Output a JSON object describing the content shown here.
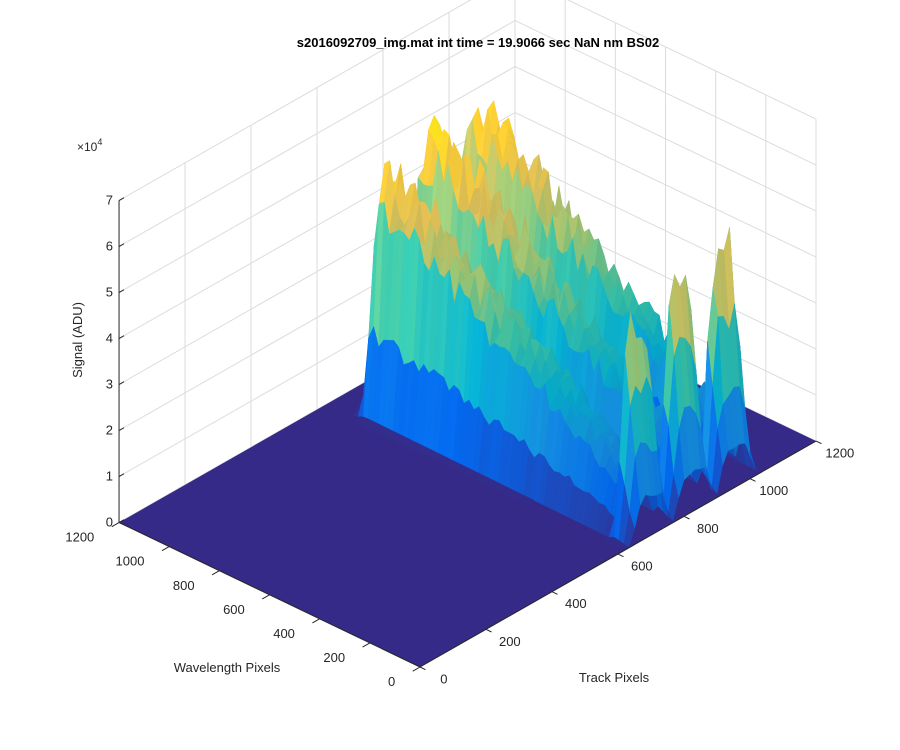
{
  "chart_data": {
    "type": "surface",
    "title": "s2016092709_img.mat int time = 19.9066 sec  NaN nm BS02",
    "zlabel": "Signal (ADU)",
    "xlabel": "Track Pixels",
    "ylabel": "Wavelength Pixels",
    "z_exponent_label": "×10",
    "z_exponent_power": "4",
    "xlim": [
      0,
      1200
    ],
    "ylim": [
      0,
      1200
    ],
    "zlim": [
      0,
      7
    ],
    "x_ticks": [
      "0",
      "200",
      "400",
      "600",
      "800",
      "1000",
      "1200"
    ],
    "y_ticks": [
      "0",
      "200",
      "400",
      "600",
      "800",
      "1000",
      "1200"
    ],
    "z_ticks": [
      "0",
      "1",
      "2",
      "3",
      "4",
      "5",
      "6",
      "7"
    ],
    "grid": true,
    "colormap": [
      "#352a87",
      "#0363e1",
      "#1485d4",
      "#06a7c6",
      "#38b99e",
      "#92bf73",
      "#d9ba56",
      "#fcce2e",
      "#f9fb0e"
    ],
    "surface_color_floor": "#352a87",
    "peaks": [
      {
        "x_center": 700,
        "x_width": 100,
        "y_from": 80,
        "y_to": 1050,
        "plateau": 5.5
      },
      {
        "x_center": 830,
        "x_width": 100,
        "y_from": 80,
        "y_to": 1050,
        "plateau": 5.9
      },
      {
        "x_center": 960,
        "x_width": 100,
        "y_from": 80,
        "y_to": 1050,
        "plateau": 5.9
      }
    ]
  }
}
